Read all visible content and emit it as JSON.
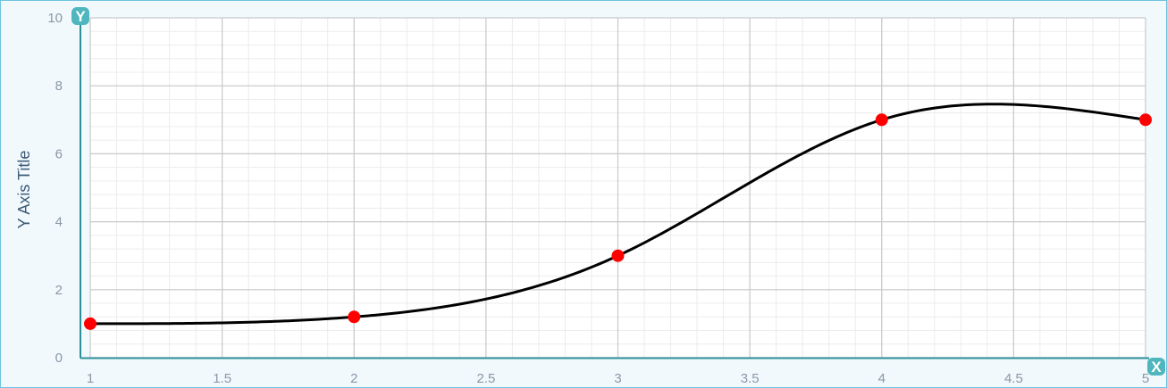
{
  "chart_data": {
    "type": "line",
    "title": "",
    "xlabel": "",
    "ylabel": "Y Axis Title",
    "xlim": [
      1,
      5
    ],
    "ylim": [
      0,
      10
    ],
    "x_ticks": [
      "1",
      "1.5",
      "2",
      "2.5",
      "3",
      "3.5",
      "4",
      "4.5",
      "5"
    ],
    "y_ticks": [
      "0",
      "2",
      "4",
      "6",
      "8",
      "10"
    ],
    "grid": true,
    "minor_grid": true,
    "smooth": true,
    "axis_badges": {
      "x": "X",
      "y": "Y"
    },
    "series": [
      {
        "points": [
          {
            "x": 1,
            "y": 1
          },
          {
            "x": 2,
            "y": 1.2
          },
          {
            "x": 3,
            "y": 3
          },
          {
            "x": 4,
            "y": 7
          },
          {
            "x": 5,
            "y": 7
          }
        ]
      }
    ]
  },
  "colors": {
    "page_bg": "#f1f9fd",
    "frame_border": "#6fc3df",
    "plot_bg": "#ffffff",
    "major_grid": "#c9c9c9",
    "minor_grid": "#ececec",
    "axis_line": "#2c8f97",
    "line": "#000000",
    "marker": "#ff0000",
    "badge": "#4fb6be"
  }
}
